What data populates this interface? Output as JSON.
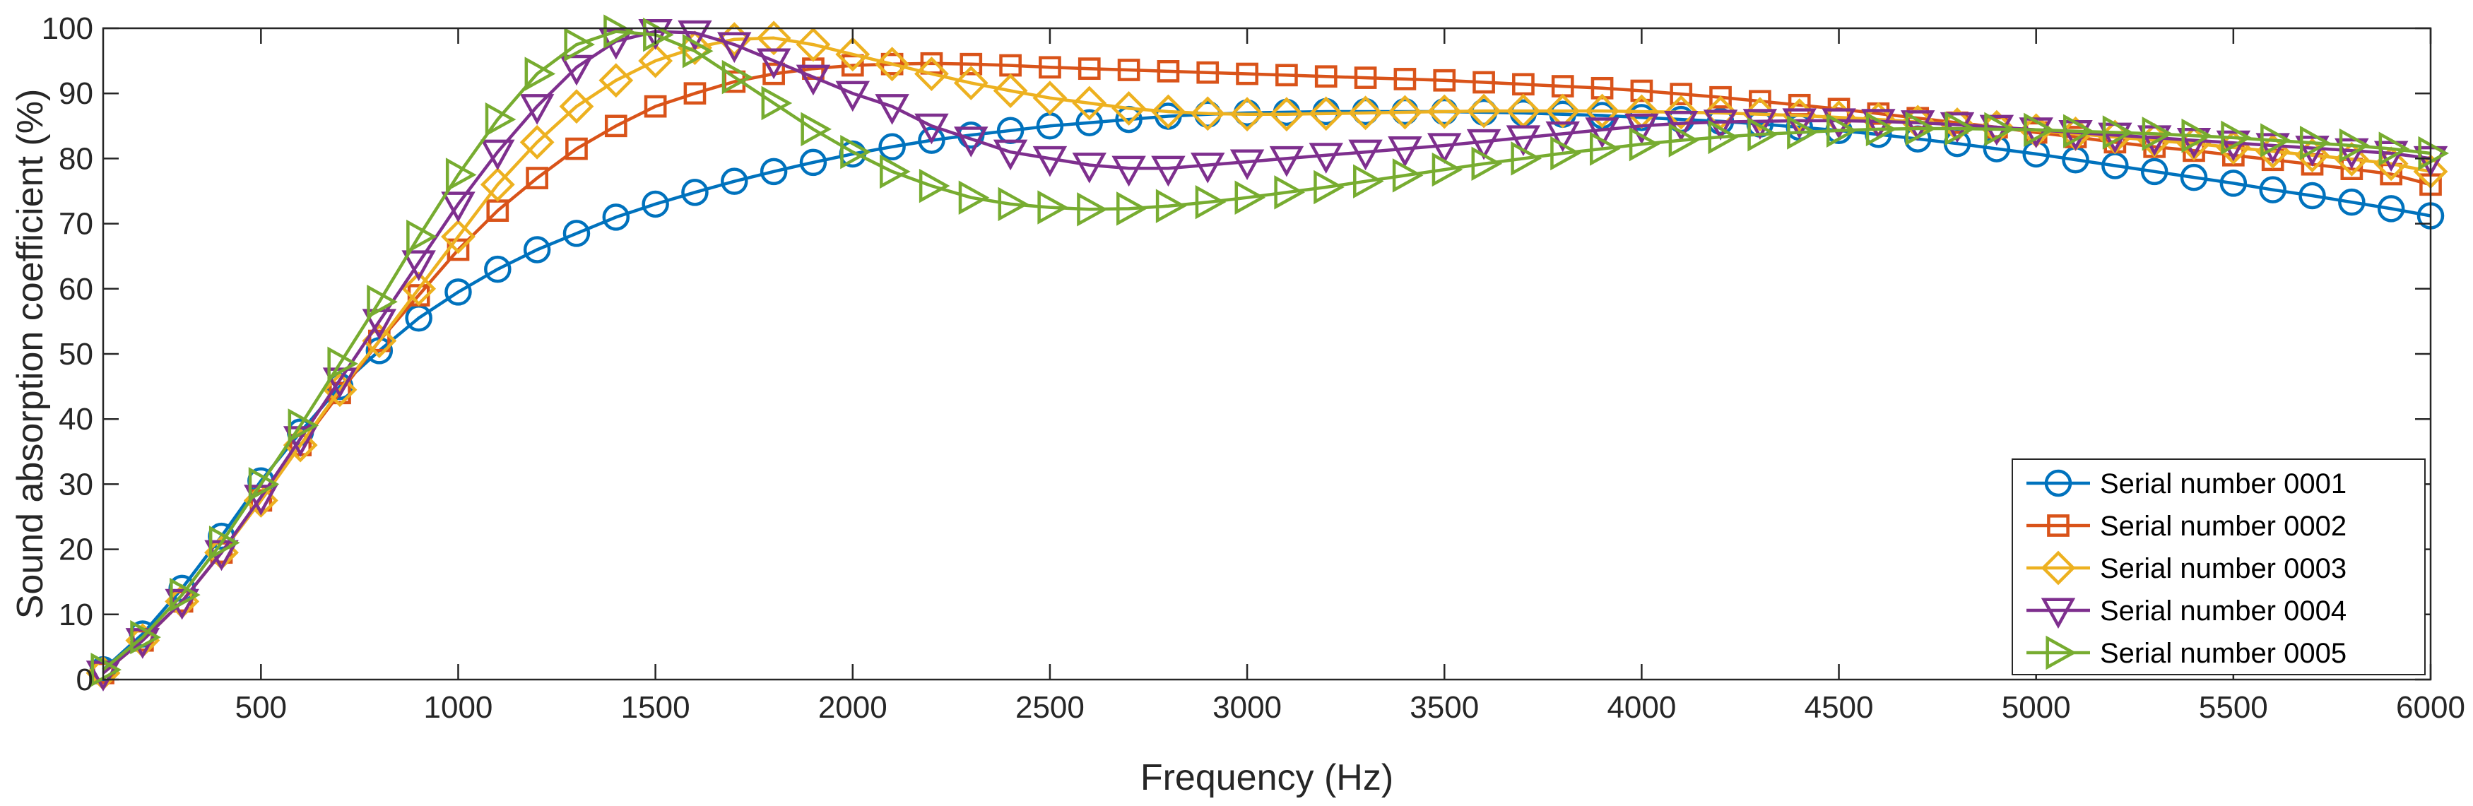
{
  "chart_data": {
    "type": "line",
    "title": "",
    "xlabel": "Frequency (Hz)",
    "ylabel": "Sound absorption coefficient (%)",
    "xlim": [
      100,
      6000
    ],
    "ylim": [
      0,
      100
    ],
    "xticks": [
      500,
      1000,
      1500,
      2000,
      2500,
      3000,
      3500,
      4000,
      4500,
      5000,
      5500,
      6000
    ],
    "yticks": [
      0,
      10,
      20,
      30,
      40,
      50,
      60,
      70,
      80,
      90,
      100
    ],
    "grid": false,
    "legend_position": "bottom-right",
    "x": [
      100,
      200,
      300,
      400,
      500,
      600,
      700,
      800,
      900,
      1000,
      1100,
      1200,
      1300,
      1400,
      1500,
      1600,
      1700,
      1800,
      1900,
      2000,
      2100,
      2200,
      2300,
      2400,
      2500,
      2600,
      2700,
      2800,
      2900,
      3000,
      3100,
      3200,
      3300,
      3400,
      3500,
      3600,
      3700,
      3800,
      3900,
      4000,
      4100,
      4200,
      4300,
      4400,
      4500,
      4600,
      4700,
      4800,
      4900,
      5000,
      5100,
      5200,
      5300,
      5400,
      5500,
      5600,
      5700,
      5800,
      5900,
      6000
    ],
    "series": [
      {
        "name": "Serial number 0001",
        "color": "#0072BD",
        "marker": "circle",
        "values": [
          1.5,
          7,
          14,
          22,
          30.5,
          38,
          45,
          50.5,
          55.5,
          59.5,
          63,
          66,
          68.5,
          71,
          73,
          74.8,
          76.5,
          78,
          79.4,
          80.7,
          81.8,
          82.8,
          83.6,
          84.3,
          85,
          85.5,
          86,
          86.5,
          86.8,
          87,
          87.1,
          87.2,
          87.2,
          87.2,
          87.2,
          87.1,
          87,
          86.8,
          86.6,
          86.3,
          86,
          85.7,
          85.3,
          84.8,
          84.3,
          83.7,
          83,
          82.3,
          81.5,
          80.7,
          79.8,
          78.9,
          78,
          77.1,
          76.2,
          75.2,
          74.3,
          73.3,
          72.3,
          71.2
        ]
      },
      {
        "name": "Serial number 0002",
        "color": "#D95319",
        "marker": "square",
        "values": [
          1,
          6,
          12,
          19.5,
          27.5,
          36,
          44,
          52,
          59,
          66,
          72,
          77,
          81.5,
          85,
          88,
          90,
          91.8,
          93,
          93.8,
          94.3,
          94.5,
          94.6,
          94.5,
          94.3,
          94,
          93.8,
          93.6,
          93.4,
          93.2,
          93,
          92.8,
          92.6,
          92.4,
          92.2,
          92,
          91.7,
          91.4,
          91.1,
          90.8,
          90.4,
          89.9,
          89.4,
          88.8,
          88.2,
          87.6,
          86.9,
          86.2,
          85.5,
          84.8,
          84,
          83.3,
          82.5,
          81.8,
          81.2,
          80.5,
          79.8,
          79.1,
          78.4,
          77.6,
          76
        ]
      },
      {
        "name": "Serial number 0003",
        "color": "#EDB120",
        "marker": "diamond",
        "values": [
          1,
          6,
          12,
          19.5,
          27.5,
          36,
          44.5,
          52,
          60,
          68,
          76,
          82.5,
          88,
          92,
          95,
          97,
          98.3,
          98.5,
          97.5,
          96,
          94.5,
          93,
          91.6,
          90.4,
          89.3,
          88.5,
          87.7,
          87.2,
          86.9,
          86.8,
          86.8,
          86.9,
          87,
          87.1,
          87.2,
          87.3,
          87.3,
          87.3,
          87.3,
          87.2,
          87.1,
          87,
          86.8,
          86.6,
          86.3,
          86,
          85.6,
          85.2,
          84.8,
          84.3,
          83.8,
          83.3,
          82.8,
          82.3,
          81.7,
          81.1,
          80.5,
          79.9,
          79.2,
          78
        ]
      },
      {
        "name": "Serial number 0004",
        "color": "#7E2F8E",
        "marker": "triangle-down",
        "values": [
          1,
          6,
          12,
          19.5,
          28,
          37,
          46,
          55,
          64,
          73,
          81,
          88,
          94,
          98,
          99.5,
          99.3,
          97.5,
          95,
          92.5,
          90,
          88,
          85,
          83,
          81,
          80,
          79,
          78.5,
          78.5,
          79,
          79.5,
          80,
          80.5,
          81,
          81.5,
          82,
          82.6,
          83.2,
          83.8,
          84.4,
          85,
          85.4,
          85.6,
          85.7,
          85.8,
          85.8,
          85.7,
          85.5,
          85.2,
          84.8,
          84.4,
          84,
          83.6,
          83.2,
          82.8,
          82.4,
          82,
          81.6,
          81.2,
          80.8,
          80
        ]
      },
      {
        "name": "Serial number 0005",
        "color": "#77AC30",
        "marker": "triangle-right",
        "values": [
          1.5,
          6.5,
          13,
          21,
          30,
          39,
          48.5,
          58,
          68,
          77.5,
          86,
          93,
          97.5,
          99.5,
          99,
          96.5,
          92.5,
          88.5,
          84.5,
          81,
          78,
          75.8,
          74,
          73,
          72.5,
          72.2,
          72.3,
          72.7,
          73.3,
          74,
          74.8,
          75.6,
          76.5,
          77.4,
          78.3,
          79.2,
          80,
          80.8,
          81.5,
          82.2,
          82.8,
          83.3,
          83.7,
          84,
          84.3,
          84.5,
          84.6,
          84.6,
          84.5,
          84.4,
          84.2,
          84,
          83.8,
          83.5,
          83.2,
          82.8,
          82.4,
          82,
          81.5,
          80.8
        ]
      }
    ]
  }
}
